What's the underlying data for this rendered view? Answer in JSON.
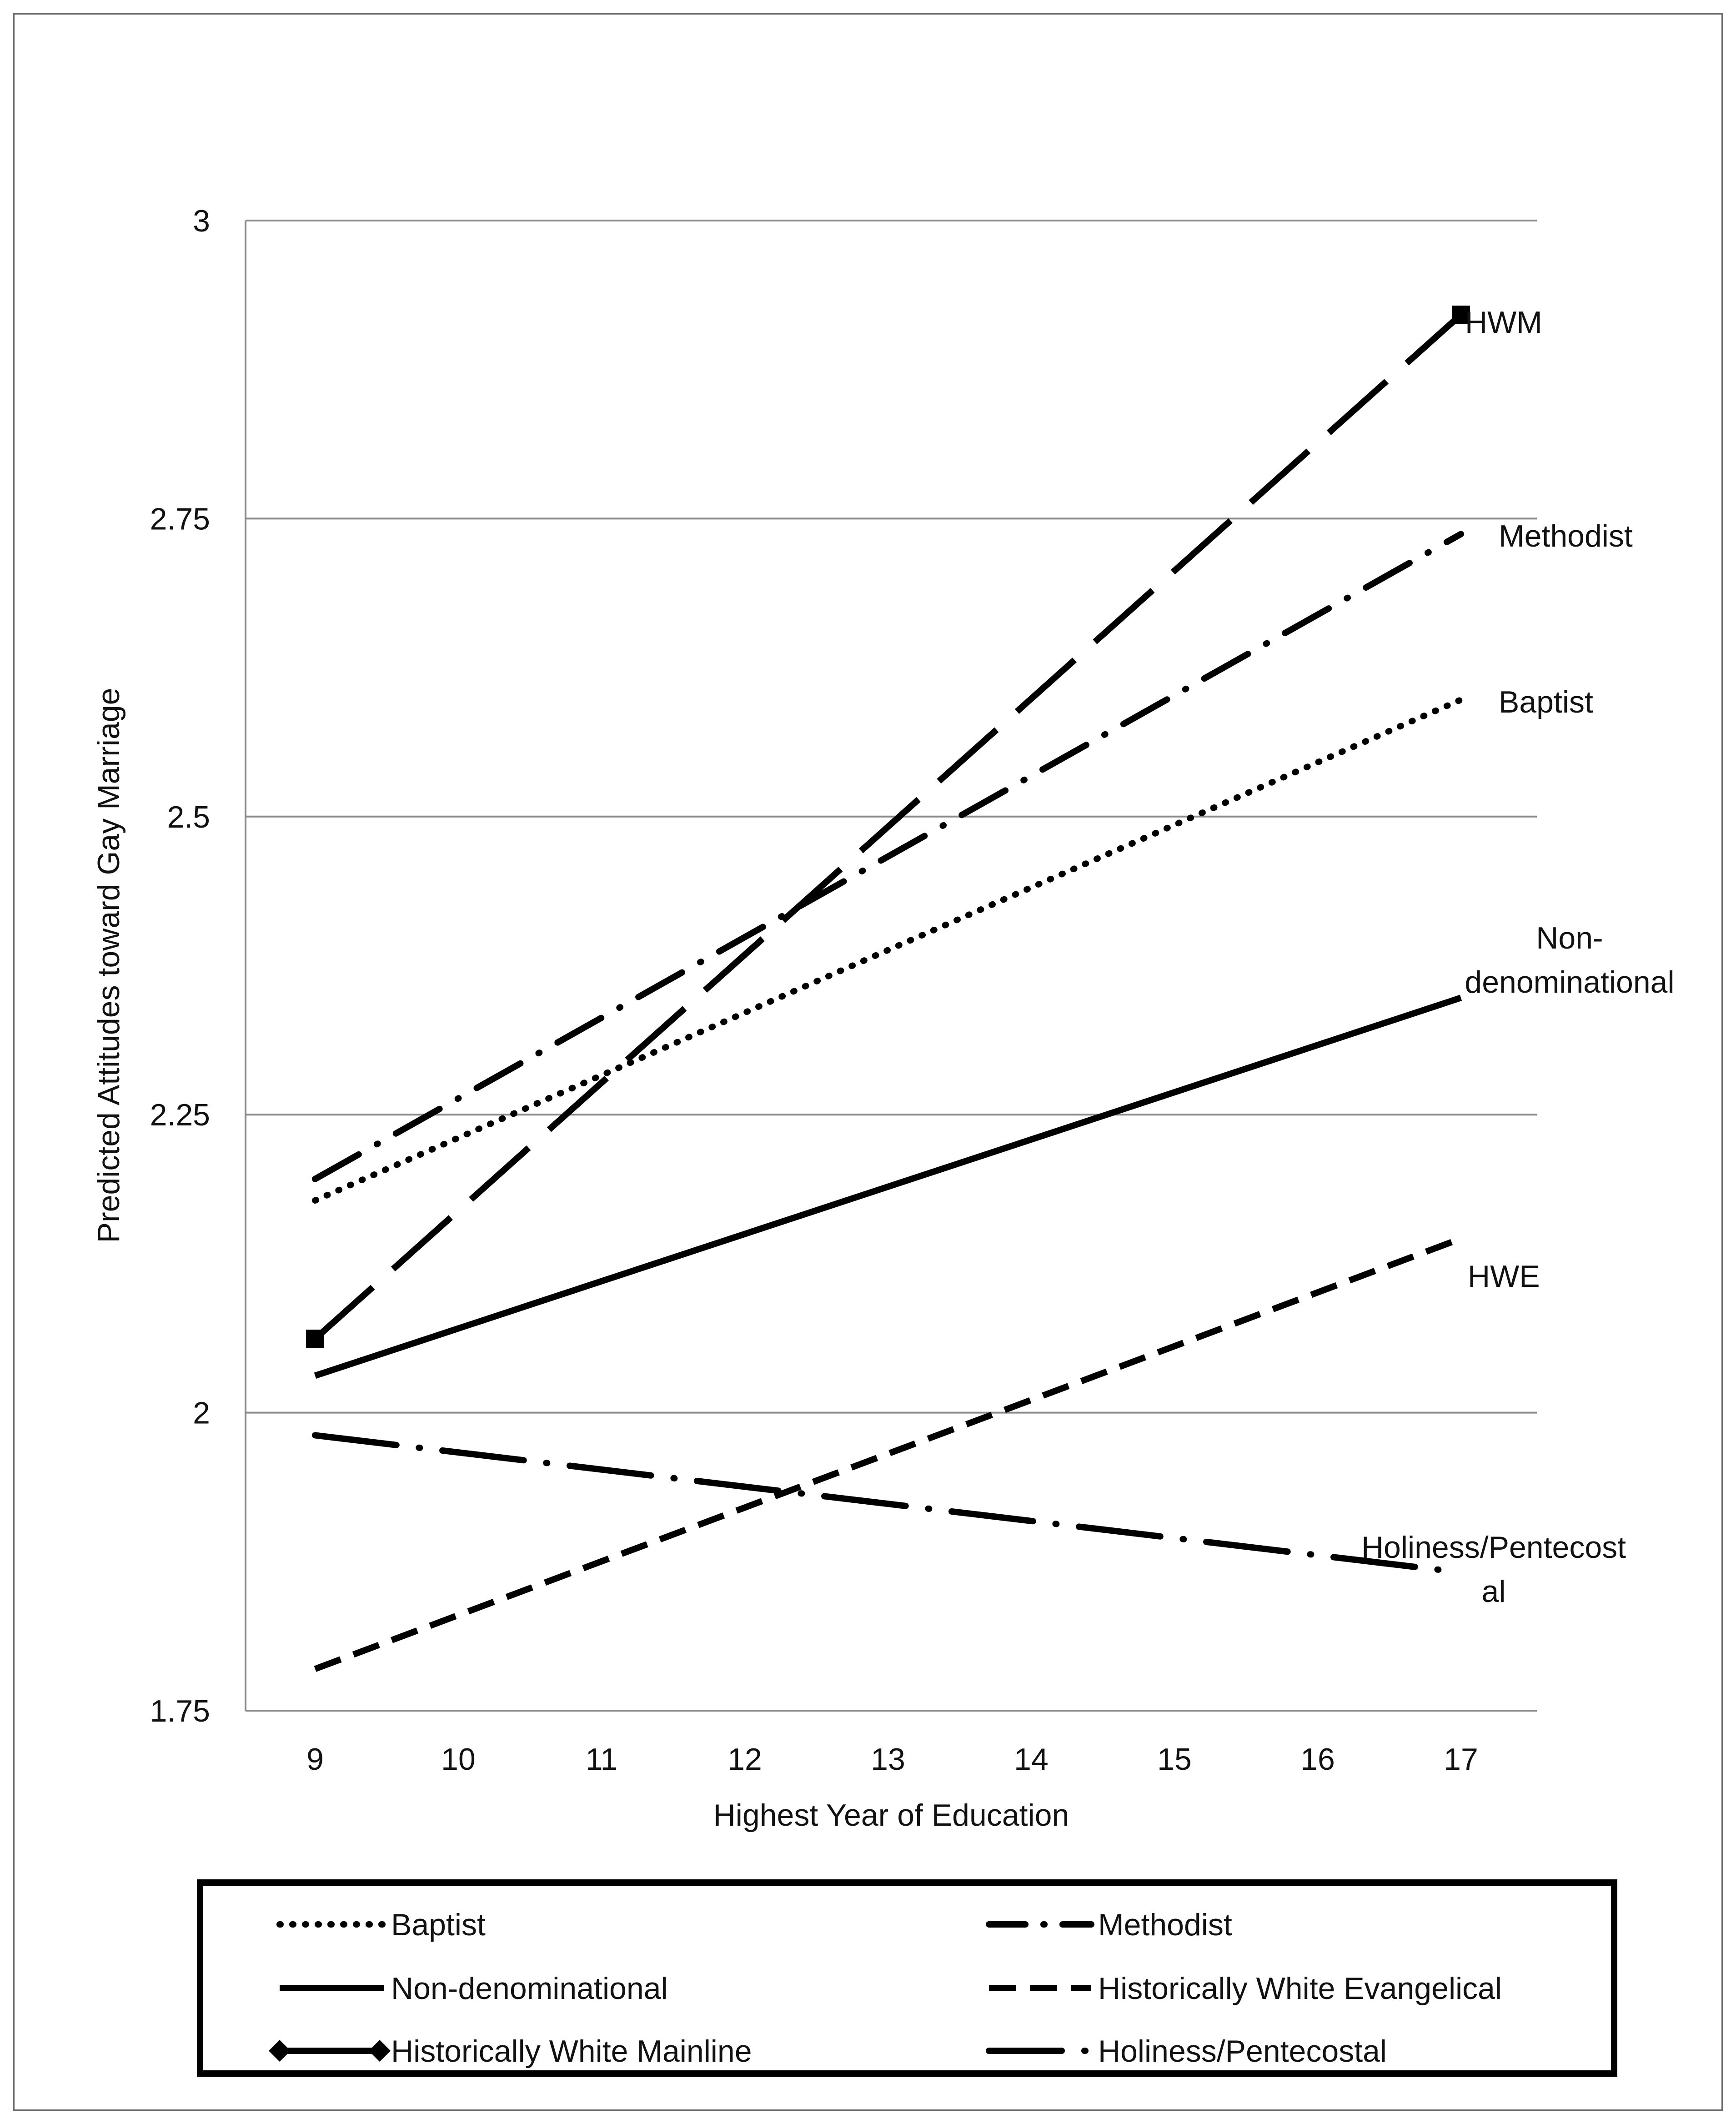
{
  "chart_data": {
    "type": "line",
    "title": "",
    "xlabel": "Highest Year of Education",
    "ylabel": "Predicted Attitudes  toward Gay Marriage",
    "x": [
      9,
      10,
      11,
      12,
      13,
      14,
      15,
      16,
      17
    ],
    "xlim": [
      9,
      17
    ],
    "ylim": [
      1.75,
      3
    ],
    "yticks": [
      1.75,
      2,
      2.25,
      2.5,
      2.75,
      3
    ],
    "ytick_labels": [
      "1.75",
      "2",
      "2.25",
      "2.5",
      "2.75",
      "3"
    ],
    "xtick_labels": [
      "9",
      "10",
      "11",
      "12",
      "13",
      "14",
      "15",
      "16",
      "17"
    ],
    "grid": "horizontal",
    "series": [
      {
        "name": "Baptist",
        "label": "Baptist",
        "x": [
          9,
          17
        ],
        "values": [
          2.178,
          2.598
        ],
        "style": "dotted"
      },
      {
        "name": "Methodist",
        "label": "Methodist",
        "x": [
          9,
          17
        ],
        "values": [
          2.196,
          2.737
        ],
        "style": "dashdot"
      },
      {
        "name": "Non-denominational",
        "label": "Non-denominational",
        "x": [
          9,
          17
        ],
        "values": [
          2.031,
          2.348
        ],
        "style": "solid"
      },
      {
        "name": "Historically White Evangelical",
        "label": "HWE",
        "x": [
          9,
          17
        ],
        "values": [
          1.785,
          2.146
        ],
        "style": "dashed"
      },
      {
        "name": "Historically White Mainline",
        "label": "HWM",
        "x": [
          9,
          17
        ],
        "values": [
          2.062,
          2.921
        ],
        "style": "longdash-marker"
      },
      {
        "name": "Holiness/Pentecostal",
        "label": "Holiness/Pentecostal",
        "x": [
          9,
          17
        ],
        "values": [
          1.981,
          1.866
        ],
        "style": "longdash-dot"
      }
    ],
    "line_labels": {
      "hwm": "HWM",
      "methodist": "Methodist",
      "baptist": "Baptist",
      "nondenom_line1": "Non-",
      "nondenom_line2": "denominational",
      "hwe": "HWE",
      "holiness_line1": "Holiness/Pentecost",
      "holiness_line2": "al"
    },
    "legend": {
      "position": "bottom",
      "entries": [
        "Baptist",
        "Methodist",
        "Non-denominational",
        "Historically White Evangelical",
        "Historically White Mainline",
        "Holiness/Pentecostal"
      ]
    }
  }
}
